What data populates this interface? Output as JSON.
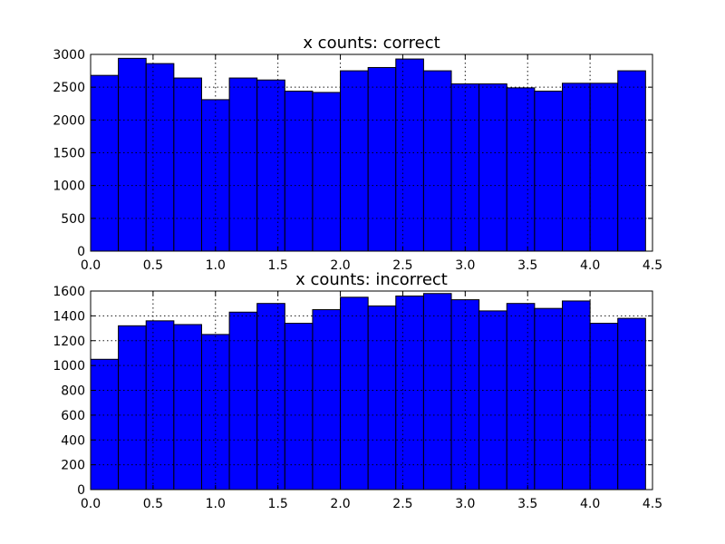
{
  "colors": {
    "bar": "#0000ff"
  },
  "chart_data": [
    {
      "type": "bar",
      "title": "x counts: correct",
      "xlabel": "",
      "ylabel": "",
      "bin_edges": [
        0.0,
        0.2222,
        0.4444,
        0.6667,
        0.8889,
        1.1111,
        1.3333,
        1.5556,
        1.7778,
        2.0,
        2.2222,
        2.4444,
        2.6667,
        2.8889,
        3.1111,
        3.3333,
        3.5556,
        3.7778,
        4.0,
        4.2222,
        4.4444
      ],
      "values": [
        2680,
        2940,
        2860,
        2640,
        2310,
        2640,
        2610,
        2440,
        2420,
        2750,
        2800,
        2930,
        2750,
        2550,
        2550,
        2490,
        2440,
        2560,
        2560,
        2750
      ],
      "xlim": [
        0.0,
        4.5
      ],
      "ylim": [
        0,
        3000
      ],
      "x_ticks": [
        "0.0",
        "0.5",
        "1.0",
        "1.5",
        "2.0",
        "2.5",
        "3.0",
        "3.5",
        "4.0",
        "4.5"
      ],
      "y_ticks": [
        "0",
        "500",
        "1000",
        "1500",
        "2000",
        "2500",
        "3000"
      ],
      "grid": true
    },
    {
      "type": "bar",
      "title": "x counts: incorrect",
      "xlabel": "",
      "ylabel": "",
      "bin_edges": [
        0.0,
        0.2222,
        0.4444,
        0.6667,
        0.8889,
        1.1111,
        1.3333,
        1.5556,
        1.7778,
        2.0,
        2.2222,
        2.4444,
        2.6667,
        2.8889,
        3.1111,
        3.3333,
        3.5556,
        3.7778,
        4.0,
        4.2222,
        4.4444
      ],
      "values": [
        1050,
        1320,
        1360,
        1330,
        1250,
        1430,
        1500,
        1340,
        1450,
        1550,
        1480,
        1560,
        1580,
        1530,
        1440,
        1500,
        1460,
        1520,
        1340,
        1380
      ],
      "xlim": [
        0.0,
        4.5
      ],
      "ylim": [
        0,
        1600
      ],
      "x_ticks": [
        "0.0",
        "0.5",
        "1.0",
        "1.5",
        "2.0",
        "2.5",
        "3.0",
        "3.5",
        "4.0",
        "4.5"
      ],
      "y_ticks": [
        "0",
        "200",
        "400",
        "600",
        "800",
        "1000",
        "1200",
        "1400",
        "1600"
      ],
      "grid": true
    }
  ]
}
